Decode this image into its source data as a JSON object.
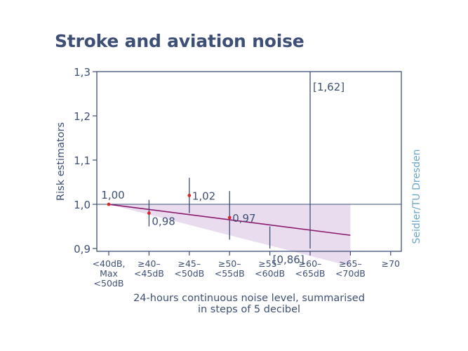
{
  "colors": {
    "title": "#3d4f75",
    "axis": "#3d4f75",
    "text": "#3d4f75",
    "line": "#8a1a6c",
    "band": "#eadcef",
    "point": "#d7262c",
    "credit": "#6aa6c8"
  },
  "chart_data": {
    "type": "line",
    "title": "Stroke and aviation noise",
    "xlabel": "24-hours continuous noise level, summarised in steps of 5 decibel",
    "xlabel_lines": [
      "24-hours continuous noise level, summarised",
      "in steps of 5 decibel"
    ],
    "ylabel": "Risk estimators",
    "credit": "Seidler/TU Dresden",
    "ylim": [
      0.9,
      1.3
    ],
    "yticks": [
      {
        "value": 0.9,
        "label": "0,9"
      },
      {
        "value": 1.0,
        "label": "1,0"
      },
      {
        "value": 1.1,
        "label": "1,1"
      },
      {
        "value": 1.2,
        "label": "1,2"
      },
      {
        "value": 1.3,
        "label": "1,3"
      }
    ],
    "reference_line": 1.0,
    "categories": [
      {
        "lines": [
          "<40dB,",
          "Max",
          "<50dB"
        ]
      },
      {
        "lines": [
          "≥40–",
          "<45dB"
        ]
      },
      {
        "lines": [
          "≥45–",
          "<50dB"
        ]
      },
      {
        "lines": [
          "≥50–",
          "<55dB"
        ]
      },
      {
        "lines": [
          "≥55–",
          "<60dB"
        ]
      },
      {
        "lines": [
          "≥60–",
          "<65dB"
        ]
      },
      {
        "lines": [
          "≥65–",
          "<70dB"
        ]
      },
      {
        "lines": [
          "≥70"
        ]
      }
    ],
    "points": [
      {
        "category_index": 0,
        "value": 1.0,
        "label": "1,00"
      },
      {
        "category_index": 1,
        "value": 0.98,
        "label": "0,98",
        "ci": [
          0.95,
          1.01
        ]
      },
      {
        "category_index": 2,
        "value": 1.02,
        "label": "1,02",
        "ci": [
          0.98,
          1.06
        ]
      },
      {
        "category_index": 3,
        "value": 0.97,
        "label": "0,97",
        "ci": [
          0.92,
          1.03
        ]
      },
      {
        "category_index": 4,
        "label": "[0,86]",
        "ci": [
          0.86,
          0.95
        ]
      },
      {
        "category_index": 5,
        "label": "[1,62]",
        "ci": [
          0.9,
          1.62
        ]
      }
    ],
    "trend": {
      "from_category": 0,
      "to_category": 6,
      "start": 1.0,
      "end": 0.93
    },
    "confidence_band": {
      "upper": 1.0,
      "lower_start": 1.0,
      "lower_end": 0.86
    }
  }
}
